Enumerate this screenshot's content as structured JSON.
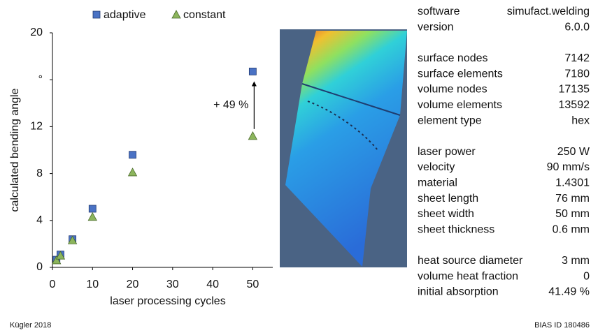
{
  "chart_data": {
    "type": "scatter",
    "x": [
      1,
      2,
      5,
      10,
      20,
      50
    ],
    "series": [
      {
        "name": "adaptive",
        "color": "#4a72c4",
        "marker": "square",
        "values": [
          0.65,
          1.1,
          2.4,
          5.0,
          9.6,
          16.7
        ]
      },
      {
        "name": "constant",
        "color": "#8cb55c",
        "marker": "triangle",
        "values": [
          0.6,
          1.0,
          2.3,
          4.3,
          8.1,
          11.2
        ]
      }
    ],
    "xlabel": "laser processing cycles",
    "ylabel": "calculated bending angle",
    "xlim": [
      0,
      55
    ],
    "xticks": [
      0,
      10,
      20,
      30,
      40,
      50
    ],
    "ylim": [
      0,
      20
    ],
    "yticks": [
      0,
      4,
      8,
      12,
      {
        "value": 16,
        "label": "°"
      },
      20
    ],
    "annotation": "+ 49 %",
    "legend": "top"
  },
  "table": {
    "groups": [
      [
        [
          "software",
          "simufact.welding"
        ],
        [
          "version",
          "6.0.0"
        ]
      ],
      [
        [
          "surface nodes",
          "7142"
        ],
        [
          "surface elements",
          "7180"
        ],
        [
          "volume nodes",
          "17135"
        ],
        [
          "volume elements",
          "13592"
        ],
        [
          "element type",
          "hex"
        ]
      ],
      [
        [
          "laser power",
          "250 W"
        ],
        [
          "velocity",
          "90 mm/s"
        ],
        [
          "material",
          "1.4301"
        ],
        [
          "sheet length",
          "76 mm"
        ],
        [
          "sheet width",
          "50 mm"
        ],
        [
          "sheet thickness",
          "0.6 mm"
        ]
      ],
      [
        [
          "heat source diameter",
          "3 mm"
        ],
        [
          "volume heat fraction",
          "0"
        ],
        [
          "initial absorption",
          "41.49 %"
        ]
      ]
    ]
  },
  "footer": {
    "left": "Kügler 2018",
    "right": "BIAS ID 180486"
  }
}
